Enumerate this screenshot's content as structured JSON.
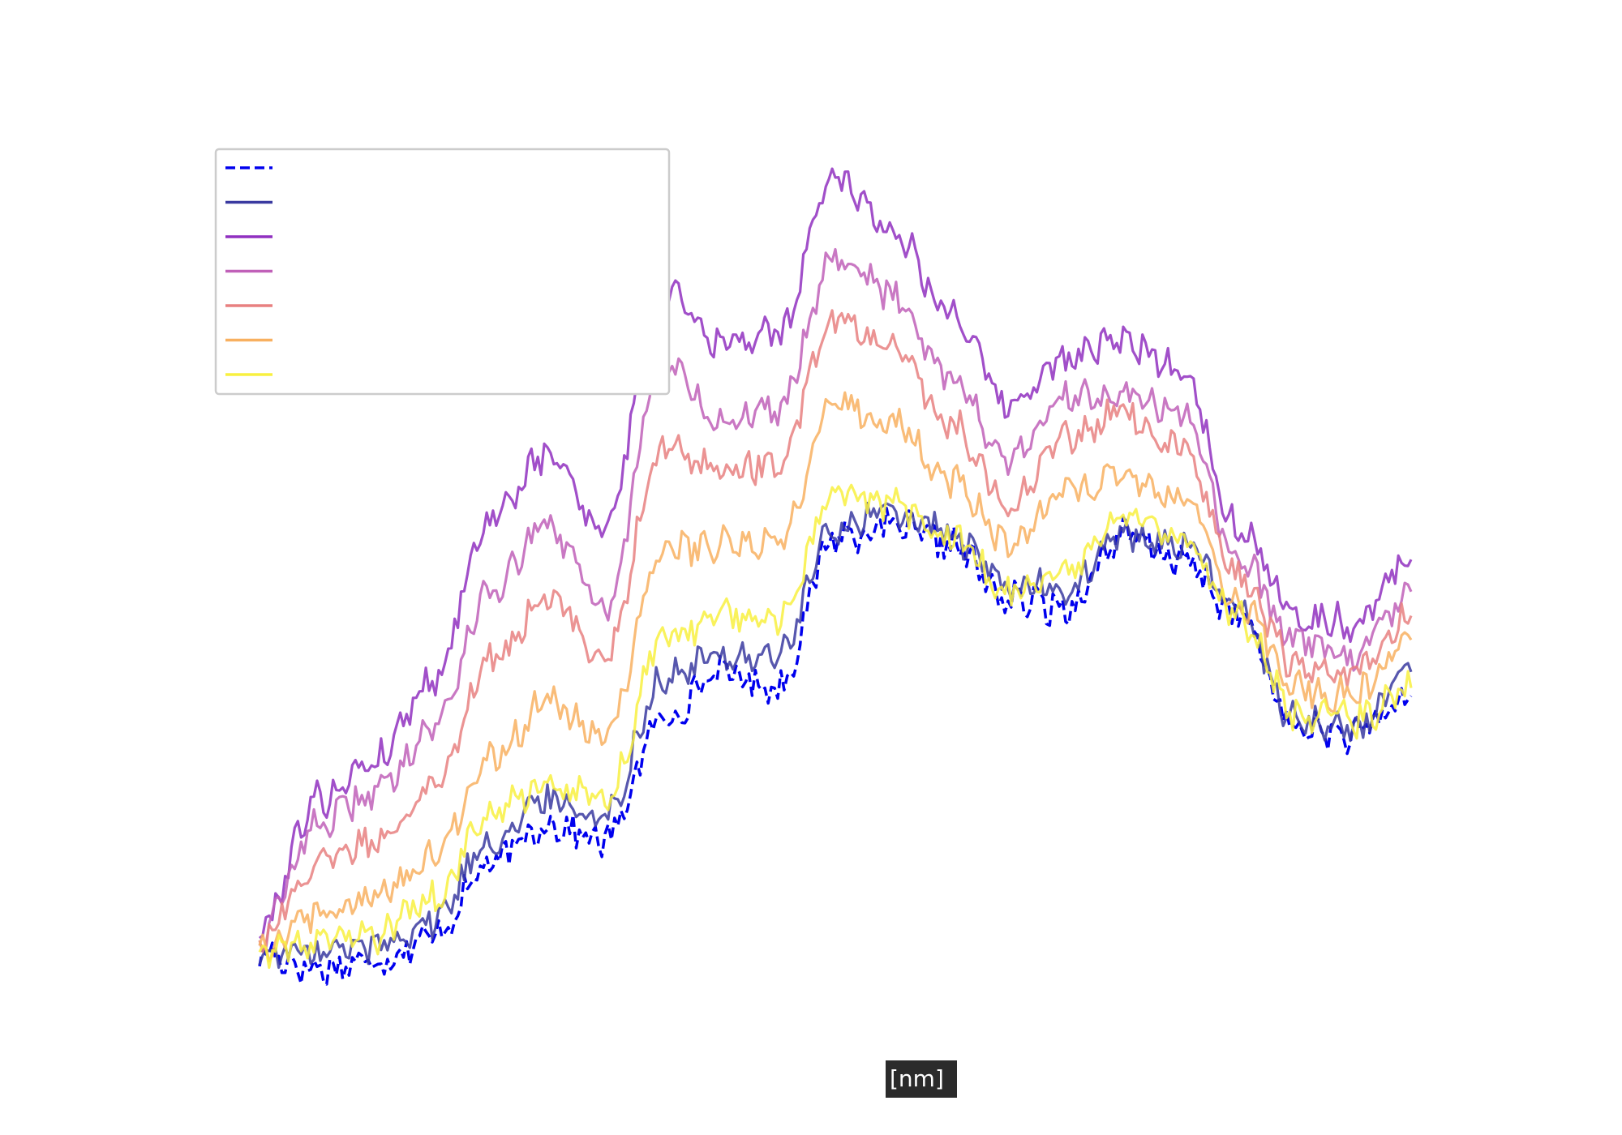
{
  "chart_data": {
    "type": "line",
    "title": "",
    "xlabel": "[nm]",
    "ylabel": "",
    "grid": false,
    "legend_placement": "upper-left",
    "x": [
      0,
      10,
      20,
      30,
      40,
      50,
      60,
      70,
      80,
      90,
      100,
      110,
      120,
      130,
      140,
      150,
      160,
      170,
      180,
      190,
      200
    ],
    "series": [
      {
        "color": "#0000ee",
        "dash": true,
        "values": [
          0.03,
          0.01,
          0.02,
          0.05,
          0.14,
          0.19,
          0.17,
          0.32,
          0.38,
          0.36,
          0.55,
          0.56,
          0.54,
          0.47,
          0.46,
          0.55,
          0.52,
          0.45,
          0.31,
          0.3,
          0.35
        ]
      },
      {
        "color": "#3a3aa0",
        "dash": false,
        "values": [
          0.03,
          0.03,
          0.04,
          0.07,
          0.17,
          0.22,
          0.2,
          0.37,
          0.4,
          0.4,
          0.56,
          0.58,
          0.55,
          0.49,
          0.48,
          0.55,
          0.54,
          0.46,
          0.32,
          0.31,
          0.38
        ]
      },
      {
        "color": "#9030c0",
        "dash": false,
        "values": [
          0.06,
          0.22,
          0.27,
          0.37,
          0.57,
          0.65,
          0.56,
          0.87,
          0.79,
          0.8,
          1.0,
          0.93,
          0.83,
          0.71,
          0.77,
          0.79,
          0.76,
          0.56,
          0.45,
          0.44,
          0.52
        ]
      },
      {
        "color": "#c060b8",
        "dash": false,
        "values": [
          0.05,
          0.19,
          0.23,
          0.31,
          0.48,
          0.56,
          0.46,
          0.77,
          0.69,
          0.71,
          0.9,
          0.85,
          0.75,
          0.64,
          0.72,
          0.73,
          0.7,
          0.52,
          0.42,
          0.4,
          0.48
        ]
      },
      {
        "color": "#e88080",
        "dash": false,
        "values": [
          0.05,
          0.14,
          0.17,
          0.24,
          0.39,
          0.47,
          0.4,
          0.66,
          0.63,
          0.64,
          0.82,
          0.78,
          0.69,
          0.59,
          0.67,
          0.7,
          0.66,
          0.5,
          0.39,
          0.38,
          0.45
        ]
      },
      {
        "color": "#f8b060",
        "dash": false,
        "values": [
          0.04,
          0.08,
          0.1,
          0.15,
          0.27,
          0.34,
          0.3,
          0.53,
          0.54,
          0.54,
          0.72,
          0.69,
          0.62,
          0.54,
          0.6,
          0.63,
          0.6,
          0.47,
          0.36,
          0.35,
          0.42
        ]
      },
      {
        "color": "#f8f040",
        "dash": false,
        "values": [
          0.03,
          0.04,
          0.05,
          0.1,
          0.2,
          0.24,
          0.22,
          0.42,
          0.45,
          0.45,
          0.6,
          0.59,
          0.55,
          0.48,
          0.5,
          0.57,
          0.55,
          0.45,
          0.33,
          0.32,
          0.36
        ]
      }
    ]
  }
}
